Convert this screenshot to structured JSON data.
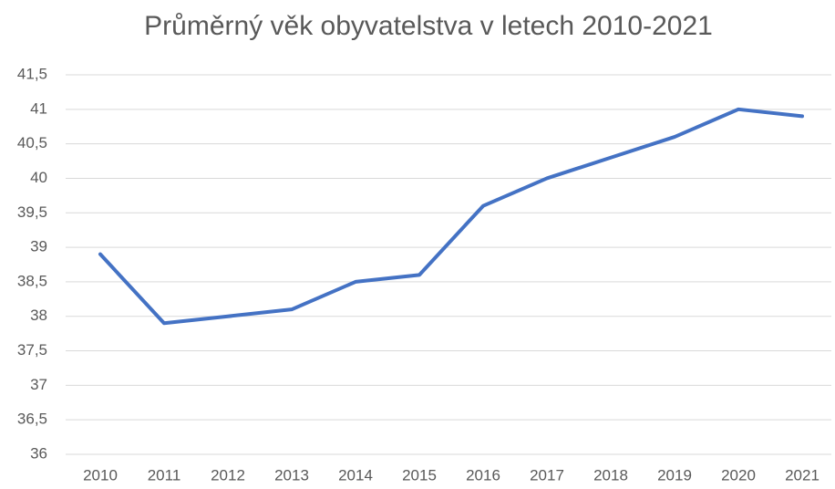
{
  "chart_data": {
    "type": "line",
    "title": "Průměrný věk obyvatelstva v letech 2010-2021",
    "categories": [
      "2010",
      "2011",
      "2012",
      "2013",
      "2014",
      "2015",
      "2016",
      "2017",
      "2018",
      "2019",
      "2020",
      "2021"
    ],
    "series": [
      {
        "name": "Průměrný věk",
        "color": "#4472c4",
        "values": [
          38.9,
          37.9,
          38.0,
          38.1,
          38.5,
          38.6,
          39.6,
          40.0,
          40.3,
          40.6,
          41.0,
          40.9
        ]
      }
    ],
    "ylim": [
      36,
      41.5
    ],
    "yticks": [
      36,
      {
        "value": 36.5,
        "label": "36,5"
      },
      37,
      {
        "value": 37.5,
        "label": "37,5"
      },
      38,
      {
        "value": 38.5,
        "label": "38,5"
      },
      39,
      {
        "value": 39.5,
        "label": "39,5"
      },
      40,
      {
        "value": 40.5,
        "label": "40,5"
      },
      41,
      {
        "value": 41.5,
        "label": "41,5"
      }
    ],
    "grid": true
  }
}
